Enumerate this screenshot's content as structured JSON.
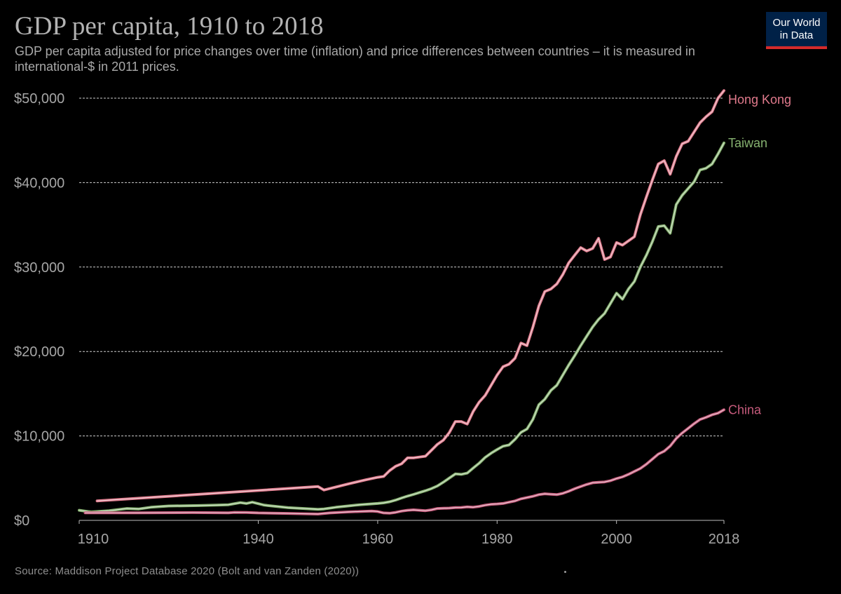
{
  "header": {
    "title": "GDP per capita, 1910 to 2018",
    "subtitle": "GDP per capita adjusted for price changes over time (inflation) and price differences between countries – it is measured in international-$ in 2011 prices."
  },
  "logo": {
    "line1": "Our World",
    "line2": "in Data"
  },
  "footer": {
    "source": "Source: Maddison Project Database 2020 (Bolt and van Zanden (2020))"
  },
  "chart_data": {
    "type": "line",
    "title": "GDP per capita, 1910 to 2018",
    "xlabel": "",
    "ylabel": "",
    "xlim": [
      1910,
      2018
    ],
    "ylim": [
      0,
      50000
    ],
    "y_ticks": [
      {
        "value": 0,
        "label": "$0"
      },
      {
        "value": 10000,
        "label": "$10,000"
      },
      {
        "value": 20000,
        "label": "$20,000"
      },
      {
        "value": 30000,
        "label": "$30,000"
      },
      {
        "value": 40000,
        "label": "$40,000"
      },
      {
        "value": 50000,
        "label": "$50,000"
      }
    ],
    "x_ticks": [
      {
        "value": 1910,
        "label": "1910"
      },
      {
        "value": 1940,
        "label": "1940"
      },
      {
        "value": 1960,
        "label": "1960"
      },
      {
        "value": 1980,
        "label": "1980"
      },
      {
        "value": 2000,
        "label": "2000"
      },
      {
        "value": 2018,
        "label": "2018"
      }
    ],
    "grid": "horizontal-dashed",
    "legend": "inline-right",
    "series": [
      {
        "name": "Hong Kong",
        "color": "#e07a8c",
        "points": [
          [
            1913,
            2300
          ],
          [
            1950,
            4000
          ],
          [
            1951,
            3600
          ],
          [
            1955,
            4300
          ],
          [
            1958,
            4800
          ],
          [
            1960,
            5100
          ],
          [
            1961,
            5200
          ],
          [
            1962,
            5900
          ],
          [
            1963,
            6400
          ],
          [
            1964,
            6700
          ],
          [
            1965,
            7400
          ],
          [
            1966,
            7400
          ],
          [
            1967,
            7500
          ],
          [
            1968,
            7600
          ],
          [
            1969,
            8300
          ],
          [
            1970,
            9000
          ],
          [
            1971,
            9500
          ],
          [
            1972,
            10400
          ],
          [
            1973,
            11700
          ],
          [
            1974,
            11700
          ],
          [
            1975,
            11400
          ],
          [
            1976,
            12900
          ],
          [
            1977,
            14000
          ],
          [
            1978,
            14800
          ],
          [
            1979,
            16000
          ],
          [
            1980,
            17200
          ],
          [
            1981,
            18200
          ],
          [
            1982,
            18500
          ],
          [
            1983,
            19200
          ],
          [
            1984,
            21000
          ],
          [
            1985,
            20700
          ],
          [
            1986,
            22900
          ],
          [
            1987,
            25400
          ],
          [
            1988,
            27100
          ],
          [
            1989,
            27400
          ],
          [
            1990,
            28000
          ],
          [
            1991,
            29100
          ],
          [
            1992,
            30500
          ],
          [
            1993,
            31400
          ],
          [
            1994,
            32300
          ],
          [
            1995,
            31900
          ],
          [
            1996,
            32200
          ],
          [
            1997,
            33400
          ],
          [
            1998,
            30900
          ],
          [
            1999,
            31200
          ],
          [
            2000,
            32900
          ],
          [
            2001,
            32600
          ],
          [
            2002,
            33100
          ],
          [
            2003,
            33600
          ],
          [
            2004,
            36200
          ],
          [
            2005,
            38300
          ],
          [
            2006,
            40300
          ],
          [
            2007,
            42200
          ],
          [
            2008,
            42600
          ],
          [
            2009,
            41000
          ],
          [
            2010,
            43100
          ],
          [
            2011,
            44600
          ],
          [
            2012,
            44900
          ],
          [
            2013,
            46000
          ],
          [
            2014,
            47100
          ],
          [
            2015,
            47800
          ],
          [
            2016,
            48400
          ],
          [
            2017,
            50000
          ],
          [
            2018,
            50900
          ]
        ]
      },
      {
        "name": "Taiwan",
        "color": "#86b270",
        "points": [
          [
            1910,
            1200
          ],
          [
            1912,
            1000
          ],
          [
            1915,
            1150
          ],
          [
            1918,
            1400
          ],
          [
            1920,
            1350
          ],
          [
            1922,
            1550
          ],
          [
            1925,
            1700
          ],
          [
            1930,
            1750
          ],
          [
            1933,
            1800
          ],
          [
            1935,
            1850
          ],
          [
            1937,
            2100
          ],
          [
            1938,
            2000
          ],
          [
            1939,
            2150
          ],
          [
            1941,
            1800
          ],
          [
            1945,
            1500
          ],
          [
            1950,
            1300
          ],
          [
            1951,
            1350
          ],
          [
            1953,
            1550
          ],
          [
            1955,
            1700
          ],
          [
            1957,
            1850
          ],
          [
            1960,
            2000
          ],
          [
            1961,
            2080
          ],
          [
            1962,
            2200
          ],
          [
            1963,
            2400
          ],
          [
            1964,
            2650
          ],
          [
            1965,
            2870
          ],
          [
            1966,
            3070
          ],
          [
            1967,
            3300
          ],
          [
            1968,
            3510
          ],
          [
            1969,
            3760
          ],
          [
            1970,
            4080
          ],
          [
            1971,
            4520
          ],
          [
            1972,
            5010
          ],
          [
            1973,
            5500
          ],
          [
            1974,
            5450
          ],
          [
            1975,
            5600
          ],
          [
            1976,
            6200
          ],
          [
            1977,
            6770
          ],
          [
            1978,
            7460
          ],
          [
            1979,
            7960
          ],
          [
            1980,
            8390
          ],
          [
            1981,
            8780
          ],
          [
            1982,
            8930
          ],
          [
            1983,
            9600
          ],
          [
            1984,
            10420
          ],
          [
            1985,
            10810
          ],
          [
            1986,
            11960
          ],
          [
            1987,
            13700
          ],
          [
            1988,
            14350
          ],
          [
            1989,
            15380
          ],
          [
            1990,
            16000
          ],
          [
            1991,
            17200
          ],
          [
            1992,
            18400
          ],
          [
            1993,
            19500
          ],
          [
            1994,
            20700
          ],
          [
            1995,
            21800
          ],
          [
            1996,
            22900
          ],
          [
            1997,
            23800
          ],
          [
            1998,
            24500
          ],
          [
            1999,
            25700
          ],
          [
            2000,
            26900
          ],
          [
            2001,
            26200
          ],
          [
            2002,
            27400
          ],
          [
            2003,
            28300
          ],
          [
            2004,
            30000
          ],
          [
            2005,
            31400
          ],
          [
            2006,
            33000
          ],
          [
            2007,
            34800
          ],
          [
            2008,
            34900
          ],
          [
            2009,
            34000
          ],
          [
            2010,
            37400
          ],
          [
            2011,
            38500
          ],
          [
            2012,
            39300
          ],
          [
            2013,
            40100
          ],
          [
            2014,
            41500
          ],
          [
            2015,
            41700
          ],
          [
            2016,
            42200
          ],
          [
            2017,
            43400
          ],
          [
            2018,
            44700
          ]
        ]
      },
      {
        "name": "China",
        "color": "#c65b7c",
        "points": [
          [
            1911,
            900
          ],
          [
            1920,
            900
          ],
          [
            1929,
            920
          ],
          [
            1935,
            900
          ],
          [
            1936,
            950
          ],
          [
            1938,
            940
          ],
          [
            1940,
            880
          ],
          [
            1945,
            820
          ],
          [
            1950,
            750
          ],
          [
            1952,
            880
          ],
          [
            1955,
            1000
          ],
          [
            1957,
            1050
          ],
          [
            1959,
            1100
          ],
          [
            1960,
            1050
          ],
          [
            1961,
            880
          ],
          [
            1962,
            850
          ],
          [
            1963,
            950
          ],
          [
            1964,
            1100
          ],
          [
            1965,
            1200
          ],
          [
            1966,
            1250
          ],
          [
            1967,
            1200
          ],
          [
            1968,
            1150
          ],
          [
            1969,
            1250
          ],
          [
            1970,
            1400
          ],
          [
            1971,
            1430
          ],
          [
            1972,
            1450
          ],
          [
            1973,
            1520
          ],
          [
            1974,
            1530
          ],
          [
            1975,
            1600
          ],
          [
            1976,
            1560
          ],
          [
            1977,
            1650
          ],
          [
            1978,
            1800
          ],
          [
            1979,
            1900
          ],
          [
            1980,
            1940
          ],
          [
            1981,
            2000
          ],
          [
            1982,
            2150
          ],
          [
            1983,
            2300
          ],
          [
            1984,
            2550
          ],
          [
            1985,
            2700
          ],
          [
            1986,
            2850
          ],
          [
            1987,
            3050
          ],
          [
            1988,
            3150
          ],
          [
            1989,
            3100
          ],
          [
            1990,
            3050
          ],
          [
            1991,
            3200
          ],
          [
            1992,
            3450
          ],
          [
            1993,
            3750
          ],
          [
            1994,
            4000
          ],
          [
            1995,
            4250
          ],
          [
            1996,
            4450
          ],
          [
            1997,
            4500
          ],
          [
            1998,
            4550
          ],
          [
            1999,
            4700
          ],
          [
            2000,
            4950
          ],
          [
            2001,
            5150
          ],
          [
            2002,
            5450
          ],
          [
            2003,
            5800
          ],
          [
            2004,
            6150
          ],
          [
            2005,
            6650
          ],
          [
            2006,
            7250
          ],
          [
            2007,
            7850
          ],
          [
            2008,
            8200
          ],
          [
            2009,
            8800
          ],
          [
            2010,
            9700
          ],
          [
            2011,
            10350
          ],
          [
            2012,
            10900
          ],
          [
            2013,
            11450
          ],
          [
            2014,
            11950
          ],
          [
            2015,
            12200
          ],
          [
            2016,
            12500
          ],
          [
            2017,
            12700
          ],
          [
            2018,
            13100
          ]
        ]
      }
    ]
  }
}
